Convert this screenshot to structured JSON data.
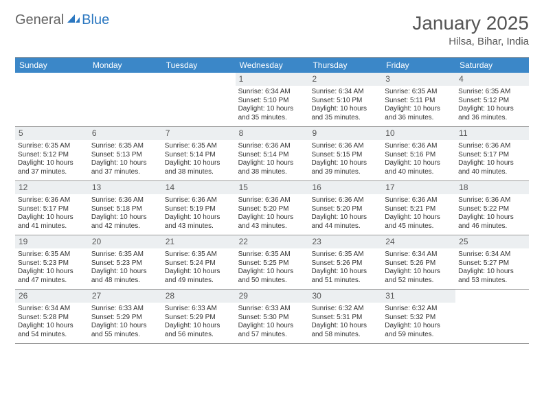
{
  "logo": {
    "part1": "General",
    "part2": "Blue"
  },
  "title": "January 2025",
  "location": "Hilsa, Bihar, India",
  "colors": {
    "header_bg": "#3b87c8",
    "header_text": "#ffffff",
    "daynum_bg": "#eceff1",
    "border": "#999999",
    "text": "#333333",
    "logo_gray": "#666666",
    "logo_blue": "#2b77c0",
    "background": "#ffffff"
  },
  "typography": {
    "title_fontsize": 28,
    "subtitle_fontsize": 15,
    "weekday_fontsize": 12,
    "daynum_fontsize": 12,
    "body_fontsize": 10
  },
  "weekdays": [
    "Sunday",
    "Monday",
    "Tuesday",
    "Wednesday",
    "Thursday",
    "Friday",
    "Saturday"
  ],
  "weeks": [
    [
      null,
      null,
      null,
      {
        "n": "1",
        "sr": "6:34 AM",
        "ss": "5:10 PM",
        "dl": "10 hours and 35 minutes."
      },
      {
        "n": "2",
        "sr": "6:34 AM",
        "ss": "5:10 PM",
        "dl": "10 hours and 35 minutes."
      },
      {
        "n": "3",
        "sr": "6:35 AM",
        "ss": "5:11 PM",
        "dl": "10 hours and 36 minutes."
      },
      {
        "n": "4",
        "sr": "6:35 AM",
        "ss": "5:12 PM",
        "dl": "10 hours and 36 minutes."
      }
    ],
    [
      {
        "n": "5",
        "sr": "6:35 AM",
        "ss": "5:12 PM",
        "dl": "10 hours and 37 minutes."
      },
      {
        "n": "6",
        "sr": "6:35 AM",
        "ss": "5:13 PM",
        "dl": "10 hours and 37 minutes."
      },
      {
        "n": "7",
        "sr": "6:35 AM",
        "ss": "5:14 PM",
        "dl": "10 hours and 38 minutes."
      },
      {
        "n": "8",
        "sr": "6:36 AM",
        "ss": "5:14 PM",
        "dl": "10 hours and 38 minutes."
      },
      {
        "n": "9",
        "sr": "6:36 AM",
        "ss": "5:15 PM",
        "dl": "10 hours and 39 minutes."
      },
      {
        "n": "10",
        "sr": "6:36 AM",
        "ss": "5:16 PM",
        "dl": "10 hours and 40 minutes."
      },
      {
        "n": "11",
        "sr": "6:36 AM",
        "ss": "5:17 PM",
        "dl": "10 hours and 40 minutes."
      }
    ],
    [
      {
        "n": "12",
        "sr": "6:36 AM",
        "ss": "5:17 PM",
        "dl": "10 hours and 41 minutes."
      },
      {
        "n": "13",
        "sr": "6:36 AM",
        "ss": "5:18 PM",
        "dl": "10 hours and 42 minutes."
      },
      {
        "n": "14",
        "sr": "6:36 AM",
        "ss": "5:19 PM",
        "dl": "10 hours and 43 minutes."
      },
      {
        "n": "15",
        "sr": "6:36 AM",
        "ss": "5:20 PM",
        "dl": "10 hours and 43 minutes."
      },
      {
        "n": "16",
        "sr": "6:36 AM",
        "ss": "5:20 PM",
        "dl": "10 hours and 44 minutes."
      },
      {
        "n": "17",
        "sr": "6:36 AM",
        "ss": "5:21 PM",
        "dl": "10 hours and 45 minutes."
      },
      {
        "n": "18",
        "sr": "6:36 AM",
        "ss": "5:22 PM",
        "dl": "10 hours and 46 minutes."
      }
    ],
    [
      {
        "n": "19",
        "sr": "6:35 AM",
        "ss": "5:23 PM",
        "dl": "10 hours and 47 minutes."
      },
      {
        "n": "20",
        "sr": "6:35 AM",
        "ss": "5:23 PM",
        "dl": "10 hours and 48 minutes."
      },
      {
        "n": "21",
        "sr": "6:35 AM",
        "ss": "5:24 PM",
        "dl": "10 hours and 49 minutes."
      },
      {
        "n": "22",
        "sr": "6:35 AM",
        "ss": "5:25 PM",
        "dl": "10 hours and 50 minutes."
      },
      {
        "n": "23",
        "sr": "6:35 AM",
        "ss": "5:26 PM",
        "dl": "10 hours and 51 minutes."
      },
      {
        "n": "24",
        "sr": "6:34 AM",
        "ss": "5:26 PM",
        "dl": "10 hours and 52 minutes."
      },
      {
        "n": "25",
        "sr": "6:34 AM",
        "ss": "5:27 PM",
        "dl": "10 hours and 53 minutes."
      }
    ],
    [
      {
        "n": "26",
        "sr": "6:34 AM",
        "ss": "5:28 PM",
        "dl": "10 hours and 54 minutes."
      },
      {
        "n": "27",
        "sr": "6:33 AM",
        "ss": "5:29 PM",
        "dl": "10 hours and 55 minutes."
      },
      {
        "n": "28",
        "sr": "6:33 AM",
        "ss": "5:29 PM",
        "dl": "10 hours and 56 minutes."
      },
      {
        "n": "29",
        "sr": "6:33 AM",
        "ss": "5:30 PM",
        "dl": "10 hours and 57 minutes."
      },
      {
        "n": "30",
        "sr": "6:32 AM",
        "ss": "5:31 PM",
        "dl": "10 hours and 58 minutes."
      },
      {
        "n": "31",
        "sr": "6:32 AM",
        "ss": "5:32 PM",
        "dl": "10 hours and 59 minutes."
      },
      null
    ]
  ]
}
